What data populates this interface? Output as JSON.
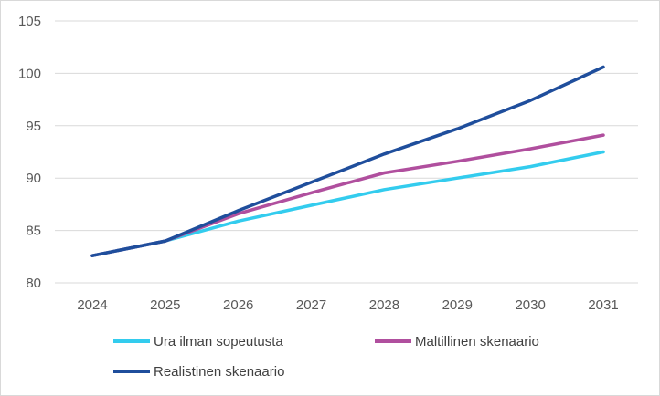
{
  "chart_data": {
    "type": "line",
    "title": "",
    "xlabel": "",
    "ylabel": "",
    "categories": [
      "2024",
      "2025",
      "2026",
      "2027",
      "2028",
      "2029",
      "2030",
      "2031"
    ],
    "ylim": [
      80,
      105
    ],
    "yticks": [
      80,
      85,
      90,
      95,
      100,
      105
    ],
    "grid": true,
    "legend_position": "bottom",
    "series": [
      {
        "name": "Ura ilman sopeutusta",
        "color": "#33ccee",
        "values": [
          82.6,
          84.0,
          85.9,
          87.4,
          88.9,
          90.0,
          91.1,
          92.5
        ]
      },
      {
        "name": "Maltillinen skenaario",
        "color": "#b04f9e",
        "values": [
          82.6,
          84.0,
          86.6,
          88.6,
          90.5,
          91.6,
          92.8,
          94.1
        ]
      },
      {
        "name": "Realistinen skenaario",
        "color": "#1f4e9c",
        "values": [
          82.6,
          84.0,
          86.9,
          89.6,
          92.3,
          94.7,
          97.4,
          100.6
        ]
      }
    ]
  }
}
